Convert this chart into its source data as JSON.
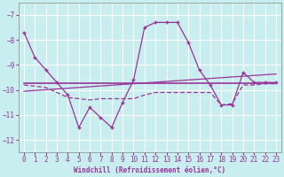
{
  "xlabel": "Windchill (Refroidissement éolien,°C)",
  "background_color": "#c8eef0",
  "grid_color": "#ffffff",
  "line_color": "#993399",
  "xlim": [
    -0.5,
    23.5
  ],
  "ylim": [
    -12.5,
    -6.5
  ],
  "yticks": [
    -12,
    -11,
    -10,
    -9,
    -8,
    -7
  ],
  "xticks": [
    0,
    1,
    2,
    3,
    4,
    5,
    6,
    7,
    8,
    9,
    10,
    11,
    12,
    13,
    14,
    15,
    16,
    17,
    18,
    19,
    20,
    21,
    22,
    23
  ],
  "series1_x": [
    0,
    1,
    2,
    3,
    4,
    5,
    6,
    7,
    8,
    9,
    10,
    11,
    12,
    13,
    14,
    15,
    16,
    17,
    18,
    19,
    20,
    21,
    22,
    23
  ],
  "series1_y": [
    -7.7,
    -8.7,
    -9.2,
    -9.7,
    -10.2,
    -11.5,
    -10.7,
    -11.1,
    -11.5,
    -10.5,
    -9.6,
    -7.5,
    -7.3,
    -7.3,
    -7.3,
    -8.1,
    -9.2,
    -9.8,
    -10.6,
    -10.6,
    -9.3,
    -9.7,
    -9.7,
    -9.7
  ],
  "series2_x": [
    0,
    1,
    2,
    3,
    4,
    5,
    6,
    7,
    8,
    9,
    10,
    11,
    12,
    13,
    14,
    15,
    16,
    17,
    18,
    19,
    20,
    21,
    22,
    23
  ],
  "series2_y": [
    -9.72,
    -9.72,
    -9.72,
    -9.72,
    -9.72,
    -9.72,
    -9.72,
    -9.72,
    -9.72,
    -9.72,
    -9.72,
    -9.72,
    -9.72,
    -9.72,
    -9.72,
    -9.72,
    -9.72,
    -9.72,
    -9.72,
    -9.72,
    -9.72,
    -9.72,
    -9.72,
    -9.72
  ],
  "series3_x": [
    0,
    1,
    2,
    3,
    4,
    5,
    6,
    7,
    8,
    9,
    10,
    11,
    12,
    13,
    14,
    15,
    16,
    17,
    18,
    19,
    20,
    21,
    22,
    23
  ],
  "series3_y": [
    -10.05,
    -10.02,
    -9.99,
    -9.96,
    -9.93,
    -9.9,
    -9.87,
    -9.84,
    -9.81,
    -9.78,
    -9.75,
    -9.72,
    -9.69,
    -9.66,
    -9.63,
    -9.6,
    -9.57,
    -9.54,
    -9.51,
    -9.48,
    -9.45,
    -9.42,
    -9.39,
    -9.36
  ],
  "series4_x": [
    0,
    1,
    2,
    3,
    4,
    5,
    6,
    7,
    8,
    9,
    10,
    11,
    12,
    13,
    14,
    15,
    16,
    17,
    18,
    19,
    20,
    21,
    22,
    23
  ],
  "series4_y": [
    -9.8,
    -9.85,
    -9.9,
    -10.1,
    -10.3,
    -10.35,
    -10.4,
    -10.35,
    -10.35,
    -10.35,
    -10.35,
    -10.2,
    -10.1,
    -10.1,
    -10.1,
    -10.1,
    -10.1,
    -10.1,
    -10.6,
    -10.55,
    -9.8,
    -9.8,
    -9.75,
    -9.75
  ]
}
